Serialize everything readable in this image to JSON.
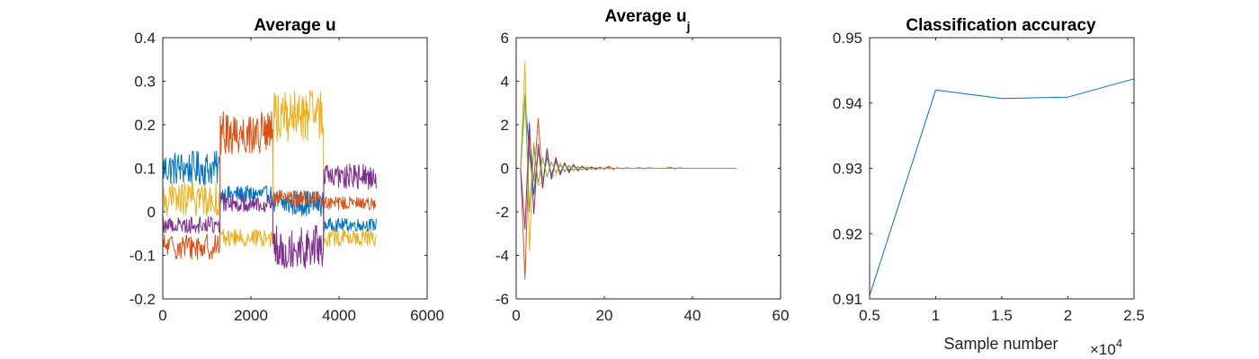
{
  "chart_data": [
    {
      "type": "line",
      "title": "Average u",
      "xlabel": "",
      "ylabel": "",
      "xlim": [
        0,
        6000
      ],
      "ylim": [
        -0.2,
        0.4
      ],
      "xticks": [
        "0",
        "2000",
        "4000",
        "6000"
      ],
      "yticks": [
        "-0.2",
        "-0.1",
        "0",
        "0.1",
        "0.2",
        "0.3",
        "0.4"
      ],
      "grid": false,
      "series": [
        {
          "color": "#0072BD",
          "segments": [
            {
              "x_start": 0,
              "x_end": 1300,
              "mean": 0.1,
              "spread": 0.04
            },
            {
              "x_start": 1300,
              "x_end": 2500,
              "mean": 0.04,
              "spread": 0.02
            },
            {
              "x_start": 2500,
              "x_end": 3650,
              "mean": 0.02,
              "spread": 0.03
            },
            {
              "x_start": 3650,
              "x_end": 4850,
              "mean": -0.03,
              "spread": 0.015
            }
          ]
        },
        {
          "color": "#D95319",
          "segments": [
            {
              "x_start": 0,
              "x_end": 1300,
              "mean": -0.08,
              "spread": 0.03
            },
            {
              "x_start": 1300,
              "x_end": 2500,
              "mean": 0.18,
              "spread": 0.05
            },
            {
              "x_start": 2500,
              "x_end": 3650,
              "mean": 0.03,
              "spread": 0.02
            },
            {
              "x_start": 3650,
              "x_end": 4850,
              "mean": 0.02,
              "spread": 0.015
            }
          ]
        },
        {
          "color": "#EDB120",
          "segments": [
            {
              "x_start": 0,
              "x_end": 1300,
              "mean": 0.03,
              "spread": 0.04
            },
            {
              "x_start": 1300,
              "x_end": 2500,
              "mean": -0.06,
              "spread": 0.02
            },
            {
              "x_start": 2500,
              "x_end": 3650,
              "mean": 0.22,
              "spread": 0.06
            },
            {
              "x_start": 3650,
              "x_end": 4850,
              "mean": -0.06,
              "spread": 0.02
            }
          ]
        },
        {
          "color": "#7E2F8E",
          "segments": [
            {
              "x_start": 0,
              "x_end": 1300,
              "mean": -0.03,
              "spread": 0.02
            },
            {
              "x_start": 1300,
              "x_end": 2500,
              "mean": 0.02,
              "spread": 0.02
            },
            {
              "x_start": 2500,
              "x_end": 3650,
              "mean": -0.08,
              "spread": 0.05
            },
            {
              "x_start": 3650,
              "x_end": 4850,
              "mean": 0.08,
              "spread": 0.03
            }
          ]
        }
      ]
    },
    {
      "type": "line",
      "title": "Average u",
      "title_subscript": "j",
      "xlabel": "",
      "ylabel": "",
      "xlim": [
        0,
        60
      ],
      "ylim": [
        -6,
        6
      ],
      "xticks": [
        "0",
        "20",
        "40",
        "60"
      ],
      "yticks": [
        "-6",
        "-4",
        "-2",
        "0",
        "2",
        "4",
        "6"
      ],
      "grid": false,
      "x": [
        1,
        2,
        3,
        4,
        5,
        6,
        7,
        8,
        9,
        10,
        11,
        12,
        13,
        14,
        15,
        16,
        17,
        18,
        19,
        20,
        21,
        22,
        23,
        24,
        25,
        26,
        27,
        28,
        29,
        30,
        31,
        32,
        33,
        34,
        35,
        36,
        37,
        38,
        39,
        40,
        41,
        42,
        43,
        44,
        45,
        46,
        47,
        48,
        49,
        50
      ],
      "series": [
        {
          "color": "#0072BD",
          "values": [
            0,
            3.2,
            0.8,
            -1.2,
            0.9,
            -0.6,
            0.5,
            -0.3,
            0.3,
            -0.2,
            0.2,
            -0.1,
            0.12,
            -0.08,
            0.07,
            -0.05,
            0.04,
            -0.03,
            0.03,
            -0.02,
            0.02,
            0,
            0,
            0,
            0,
            0,
            0,
            0,
            0,
            0,
            0,
            0,
            0,
            0,
            0,
            0,
            0,
            0,
            0,
            0,
            0,
            0,
            0,
            0,
            0,
            0,
            0,
            0,
            0,
            0
          ]
        },
        {
          "color": "#D95319",
          "values": [
            0,
            -5.1,
            1.5,
            -0.6,
            2.3,
            -0.9,
            0.8,
            -0.5,
            0.4,
            -0.3,
            0.25,
            -0.2,
            0.15,
            -0.1,
            0.1,
            -0.08,
            0.06,
            -0.05,
            0.04,
            -0.03,
            0.1,
            -0.05,
            0.03,
            -0.02,
            0.02,
            0,
            0,
            0.03,
            -0.02,
            0.02,
            0,
            0,
            0,
            0,
            0.05,
            -0.03,
            0.02,
            0,
            0,
            0,
            0,
            0,
            0,
            0,
            0,
            0,
            0,
            0,
            0,
            0
          ]
        },
        {
          "color": "#EDB120",
          "values": [
            0,
            4.9,
            -3.8,
            1.2,
            -0.8,
            -0.6,
            0.7,
            -0.4,
            -0.3,
            0.25,
            -0.2,
            0.15,
            -0.12,
            0.1,
            -0.08,
            0.06,
            -0.05,
            0.04,
            -0.03,
            0.02,
            -0.02,
            0,
            0,
            0,
            0,
            0,
            0,
            0,
            0,
            0,
            0,
            0,
            0,
            0,
            0,
            0,
            0,
            0,
            0,
            0,
            0,
            0,
            0,
            0,
            0,
            0,
            0,
            0,
            0,
            0
          ]
        },
        {
          "color": "#7E2F8E",
          "values": [
            0,
            -2.8,
            2.1,
            -2.1,
            1.1,
            -0.9,
            0.9,
            -0.5,
            0.5,
            -0.3,
            0.25,
            -0.2,
            0.18,
            -0.12,
            0.1,
            -0.08,
            0.06,
            -0.05,
            0.04,
            -0.03,
            0.02,
            0,
            0,
            0,
            0,
            0,
            0,
            0,
            0,
            0,
            0,
            0,
            0,
            0,
            0,
            0,
            0,
            0,
            0,
            0,
            0,
            0,
            0,
            0,
            0,
            0,
            0,
            0,
            0,
            0
          ]
        },
        {
          "color": "#77AC30",
          "values": [
            0,
            3.4,
            -2.0,
            1.0,
            -0.7,
            0.5,
            -0.4,
            0.3,
            -0.2,
            0.15,
            -0.12,
            0.1,
            -0.08,
            0.06,
            -0.05,
            0.04,
            -0.03,
            0.02,
            0,
            0,
            0,
            0,
            0,
            0,
            0,
            0,
            0,
            0,
            0,
            0,
            0,
            0,
            0,
            0,
            0,
            0,
            0,
            0,
            0,
            0,
            0,
            0,
            0,
            0,
            0,
            0,
            0,
            0,
            0,
            0
          ]
        }
      ]
    },
    {
      "type": "line",
      "title": "Classification accuracy",
      "xlabel": "Sample number",
      "x_exponent_label": "×10",
      "x_exponent_power": "4",
      "ylabel": "",
      "xlim": [
        0.5,
        2.5
      ],
      "ylim": [
        0.91,
        0.95
      ],
      "xticks": [
        "0.5",
        "1",
        "1.5",
        "2",
        "2.5"
      ],
      "yticks": [
        "0.91",
        "0.92",
        "0.93",
        "0.94",
        "0.95"
      ],
      "grid": false,
      "x": [
        0.5,
        1,
        1.5,
        2,
        2.5
      ],
      "series": [
        {
          "color": "#0072BD",
          "values": [
            0.9105,
            0.942,
            0.9407,
            0.9409,
            0.9437
          ]
        }
      ]
    }
  ]
}
